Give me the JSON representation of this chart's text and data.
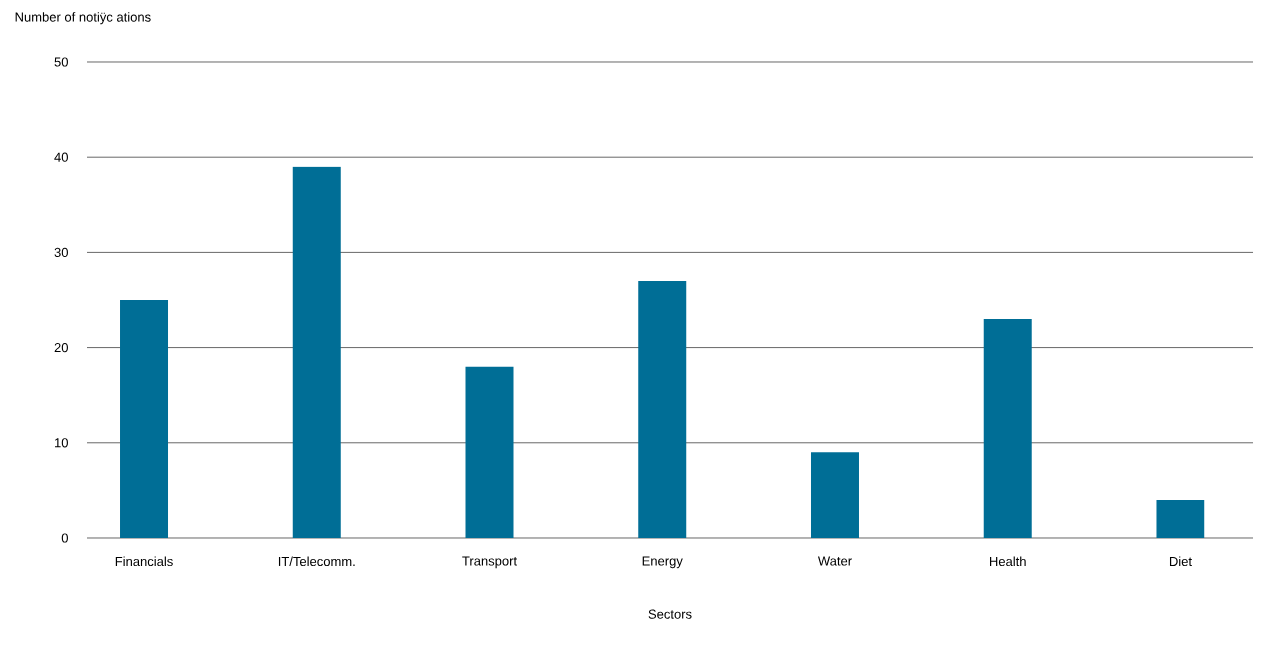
{
  "chart_data": {
    "type": "bar",
    "xlabel": "Sectors",
    "ylabel": "Number of notiÿc ations",
    "categories": [
      "Financials",
      "IT/Telecomm.",
      "Transport",
      "Energy",
      "Water",
      "Health",
      "Diet"
    ],
    "values": [
      25,
      39,
      18,
      27,
      9,
      23,
      4
    ],
    "color": "#006e96",
    "ylim": [
      0,
      50
    ],
    "yticks": [
      0,
      10,
      20,
      30,
      40,
      50
    ],
    "grid": "y"
  }
}
